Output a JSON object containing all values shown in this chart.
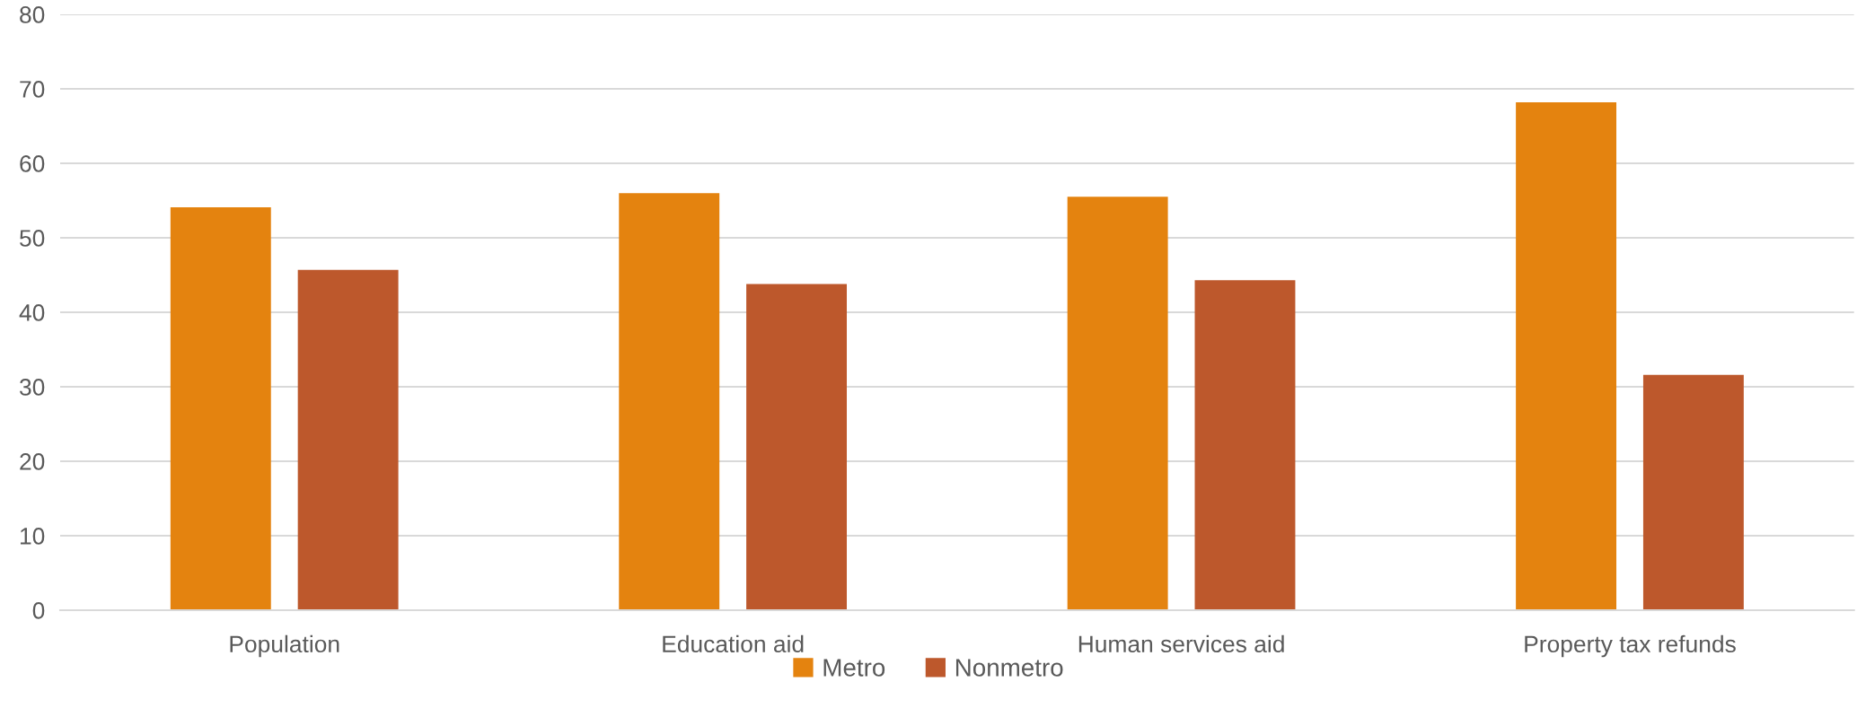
{
  "chart_data": {
    "type": "bar",
    "categories": [
      "Population",
      "Education aid",
      "Human services aid",
      "Property tax refunds"
    ],
    "series": [
      {
        "name": "Metro",
        "color": "#e4830f",
        "values": [
          54.1,
          56.0,
          55.5,
          68.2
        ]
      },
      {
        "name": "Nonmetro",
        "color": "#bd582c",
        "values": [
          45.7,
          43.8,
          44.3,
          31.6
        ]
      }
    ],
    "ylim": [
      0,
      80
    ],
    "yticks": [
      0,
      10,
      20,
      30,
      40,
      50,
      60,
      70,
      80
    ],
    "grid": "y",
    "legend": "bottom"
  }
}
